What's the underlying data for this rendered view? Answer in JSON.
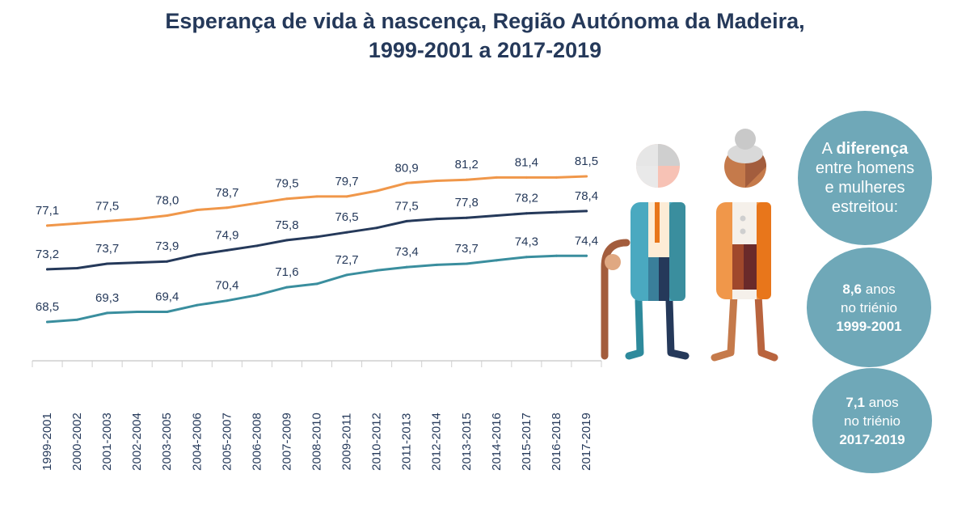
{
  "title": {
    "line1": "Esperança de vida à nascença, Região Autónoma da Madeira,",
    "line2": "1999-2001 a 2017-2019"
  },
  "colors": {
    "total": "#25395a",
    "men": "#3a8e9e",
    "women": "#f0974a",
    "circle": "#6fa8b8",
    "title": "#25395a"
  },
  "chart_data": {
    "type": "line",
    "title": "Esperança de vida à nascença, Região Autónoma da Madeira, 1999-2001 a 2017-2019",
    "xlabel": "",
    "ylabel": "",
    "legend": "none",
    "grid": false,
    "ylim": [
      64,
      84
    ],
    "categories": [
      "1999-2001",
      "2000-2002",
      "2001-2003",
      "2002-2004",
      "2003-2005",
      "2004-2006",
      "2005-2007",
      "2006-2008",
      "2007-2009",
      "2008-2010",
      "2009-2011",
      "2010-2012",
      "2011-2013",
      "2012-2014",
      "2013-2015",
      "2014-2016",
      "2015-2017",
      "2016-2018",
      "2017-2019"
    ],
    "series": [
      {
        "key": "women",
        "values": [
          77.1,
          77.3,
          77.5,
          77.7,
          78.0,
          78.5,
          78.7,
          79.1,
          79.5,
          79.7,
          79.7,
          80.2,
          80.9,
          81.1,
          81.2,
          81.4,
          81.4,
          81.4,
          81.5
        ],
        "labels": {
          "0": "77,1",
          "2": "77,5",
          "4": "78,0",
          "6": "78,7",
          "8": "79,5",
          "10": "79,7",
          "12": "80,9",
          "14": "81,2",
          "16": "81,4",
          "18": "81,5"
        }
      },
      {
        "key": "total",
        "values": [
          73.2,
          73.3,
          73.7,
          73.8,
          73.9,
          74.5,
          74.9,
          75.3,
          75.8,
          76.1,
          76.5,
          76.9,
          77.5,
          77.7,
          77.8,
          78.0,
          78.2,
          78.3,
          78.4
        ],
        "labels": {
          "0": "73,2",
          "2": "73,7",
          "4": "73,9",
          "6": "74,9",
          "8": "75,8",
          "10": "76,5",
          "12": "77,5",
          "14": "77,8",
          "16": "78,2",
          "18": "78,4"
        }
      },
      {
        "key": "men",
        "values": [
          68.5,
          68.7,
          69.3,
          69.4,
          69.4,
          70.0,
          70.4,
          70.9,
          71.6,
          71.9,
          72.7,
          73.1,
          73.4,
          73.6,
          73.7,
          74.0,
          74.3,
          74.4,
          74.4
        ],
        "labels": {
          "0": "68,5",
          "2": "69,3",
          "4": "69,4",
          "6": "70,4",
          "8": "71,6",
          "10": "72,7",
          "12": "73,4",
          "14": "73,7",
          "16": "74,3",
          "18": "74,4"
        }
      }
    ]
  },
  "circles": {
    "c1": {
      "pre": "A",
      "bold": "diferença",
      "rest": "entre homens e mulheres estreitou:"
    },
    "c2": {
      "value": "8,6",
      "unit": "anos",
      "period_label": "no triénio",
      "period": "1999-2001"
    },
    "c3": {
      "value": "7,1",
      "unit": "anos",
      "period_label": "no triénio",
      "period": "2017-2019"
    }
  },
  "figures": {
    "man": "elderly-man-with-cane-icon",
    "woman": "elderly-woman-icon"
  }
}
